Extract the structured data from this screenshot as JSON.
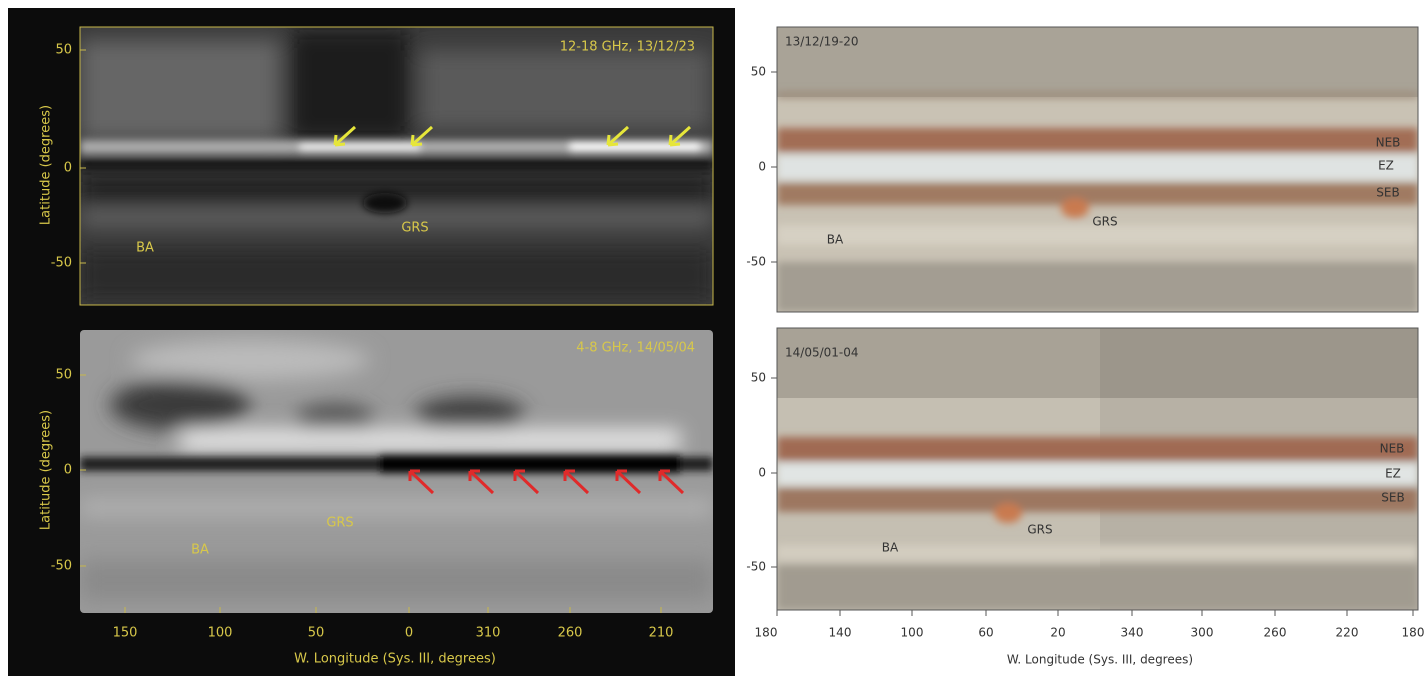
{
  "left_figure": {
    "y_label": "Latitude (degrees)",
    "x_label": "W. Longitude (Sys. III, degrees)",
    "x_ticks": [
      "150",
      "100",
      "50",
      "0",
      "310",
      "260",
      "210"
    ],
    "top_panel": {
      "caption": "12-18 GHz, 13/12/23",
      "y_ticks": [
        "50",
        "0",
        "-50"
      ],
      "labels": [
        "GRS",
        "BA"
      ]
    },
    "bottom_panel": {
      "caption": "4-8 GHz, 14/05/04",
      "y_ticks": [
        "50",
        "0",
        "-50"
      ],
      "labels": [
        "GRS",
        "BA"
      ]
    }
  },
  "right_figure": {
    "x_label": "W. Longitude (Sys. III, degrees)",
    "x_ticks": [
      "180",
      "140",
      "100",
      "60",
      "20",
      "340",
      "300",
      "260",
      "220",
      "180"
    ],
    "top_panel": {
      "caption": "13/12/19-20",
      "y_ticks": [
        "50",
        "0",
        "-50"
      ],
      "belts": [
        "NEB",
        "EZ",
        "SEB"
      ],
      "labels": [
        "GRS",
        "BA"
      ]
    },
    "bottom_panel": {
      "caption": "14/05/01-04",
      "y_ticks": [
        "50",
        "0",
        "-50"
      ],
      "belts": [
        "NEB",
        "EZ",
        "SEB"
      ],
      "labels": [
        "GRS",
        "BA"
      ]
    }
  }
}
